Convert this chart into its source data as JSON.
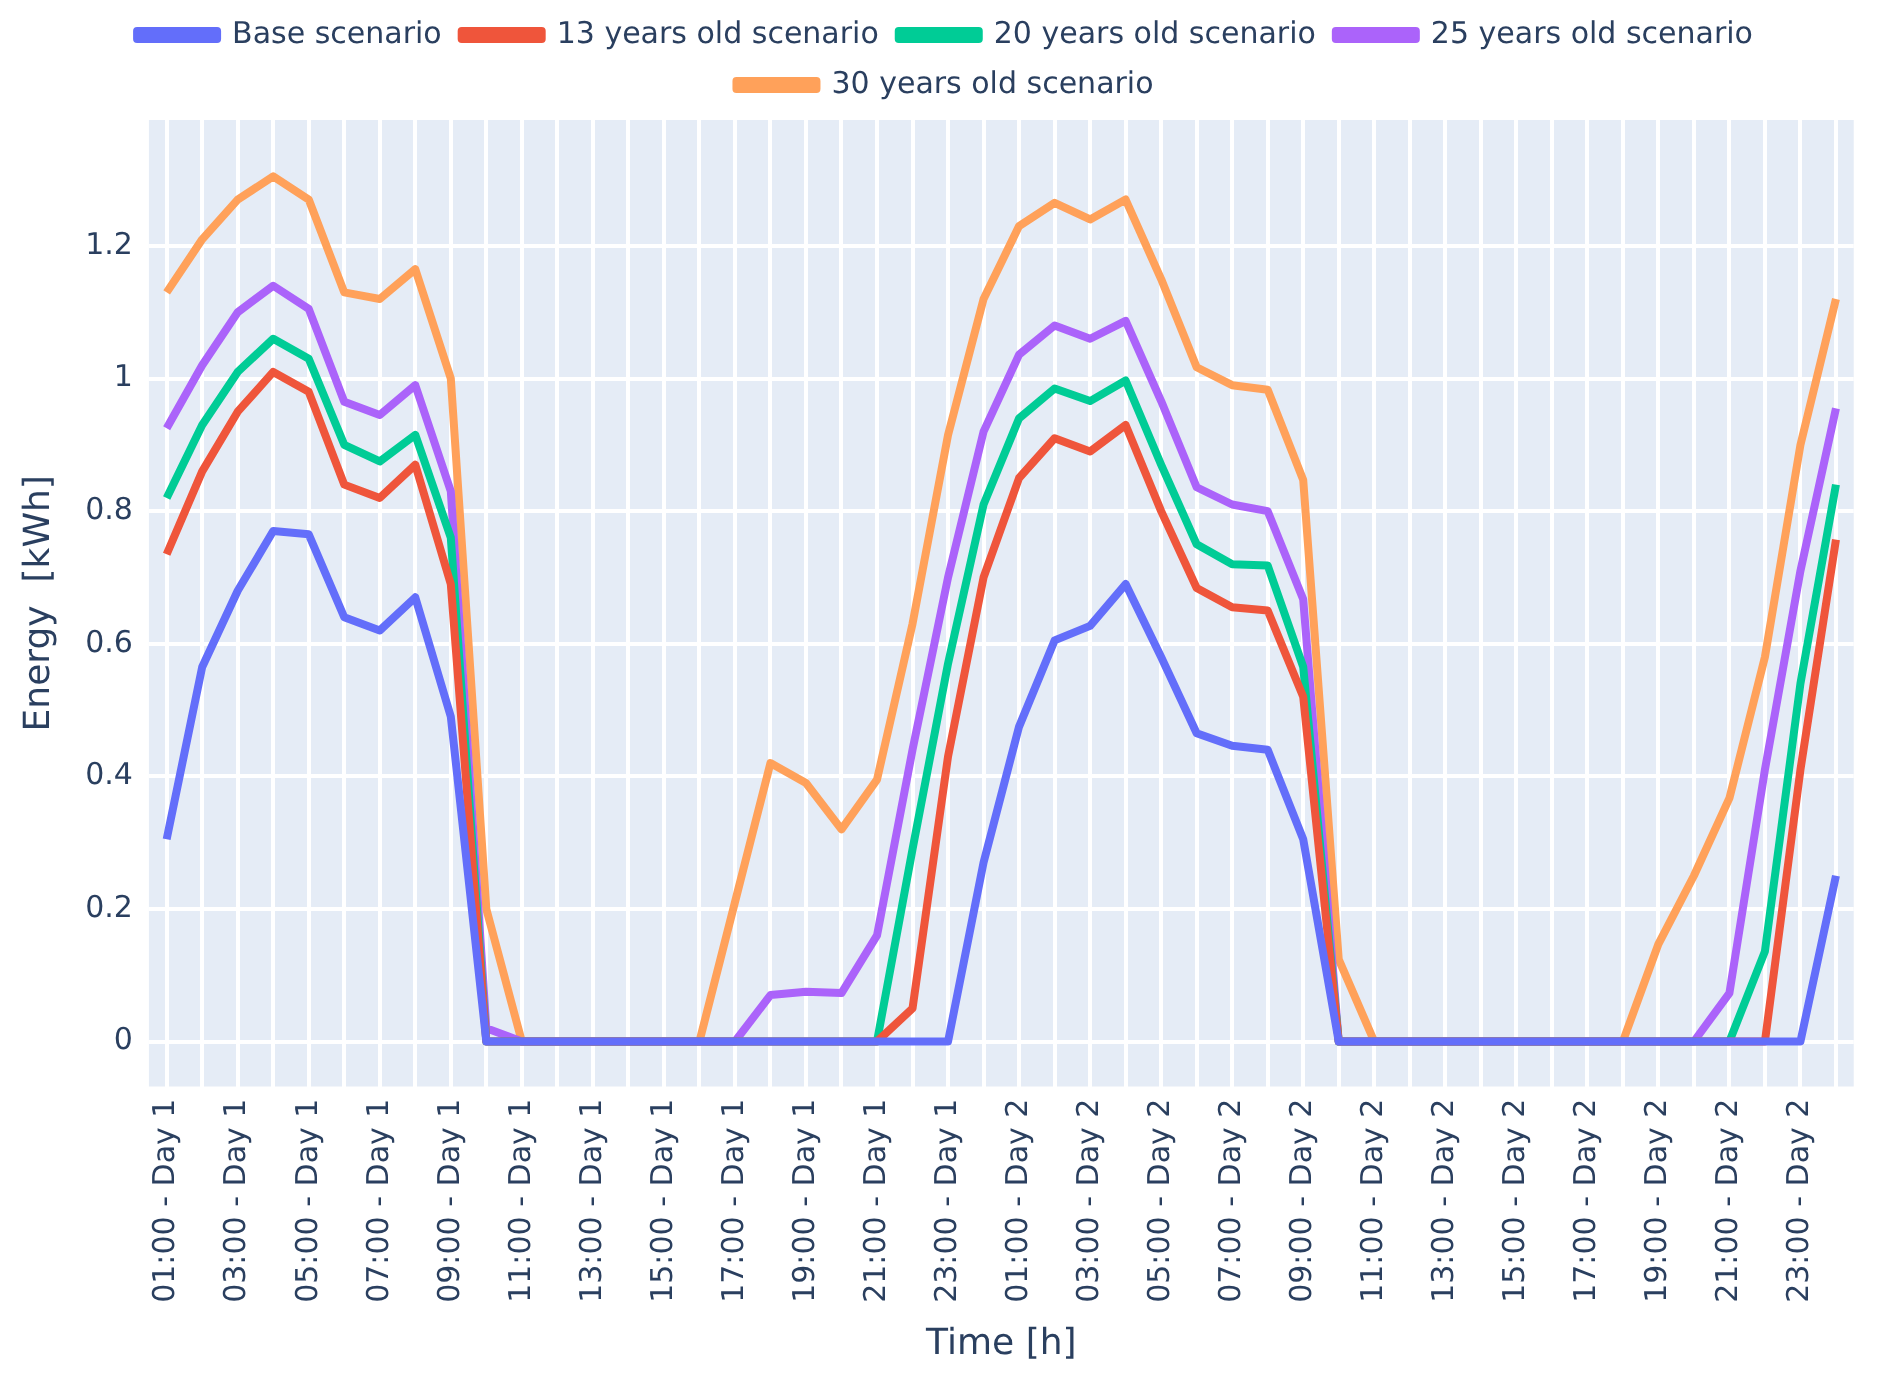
{
  "chart_data": {
    "type": "line",
    "xlabel": "Time [h]",
    "ylabel": "Energy  [kWh]",
    "categories": [
      "01:00 - Day 1",
      null,
      "03:00 - Day 1",
      null,
      "05:00 - Day 1",
      null,
      "07:00 - Day 1",
      null,
      "09:00 - Day 1",
      null,
      "11:00 - Day 1",
      null,
      "13:00 - Day 1",
      null,
      "15:00 - Day 1",
      null,
      "17:00 - Day 1",
      null,
      "19:00 - Day 1",
      null,
      "21:00 - Day 1",
      null,
      "23:00 - Day 1",
      null,
      "01:00 - Day 2",
      null,
      "03:00 - Day 2",
      null,
      "05:00 - Day 2",
      null,
      "07:00 - Day 2",
      null,
      "09:00 - Day 2",
      null,
      "11:00 - Day 2",
      null,
      "13:00 - Day 2",
      null,
      "15:00 - Day 2",
      null,
      "17:00 - Day 2",
      null,
      "19:00 - Day 2",
      null,
      "21:00 - Day 2",
      null,
      "23:00 - Day 2",
      null
    ],
    "series": [
      {
        "name": "Base scenario",
        "color": "#636efa",
        "values": [
          0.305,
          0.565,
          0.68,
          0.77,
          0.765,
          0.64,
          0.62,
          0.67,
          0.49,
          0,
          0,
          0,
          0,
          0,
          0,
          0,
          0,
          0,
          0,
          0,
          0,
          0,
          0,
          0.27,
          0.475,
          0.605,
          0.627,
          0.69,
          0.58,
          0.465,
          0.446,
          0.44,
          0.305,
          0,
          0,
          0,
          0,
          0,
          0,
          0,
          0,
          0,
          0,
          0,
          0,
          0,
          0,
          0.25
        ]
      },
      {
        "name": "13 years old scenario",
        "color": "#ef553b",
        "values": [
          0.735,
          0.86,
          0.95,
          1.01,
          0.98,
          0.84,
          0.82,
          0.87,
          0.69,
          0,
          0,
          0,
          0,
          0,
          0,
          0,
          0,
          0,
          0,
          0,
          0,
          0.05,
          0.43,
          0.7,
          0.85,
          0.91,
          0.89,
          0.93,
          0.8,
          0.684,
          0.655,
          0.65,
          0.52,
          0,
          0,
          0,
          0,
          0,
          0,
          0,
          0,
          0,
          0,
          0,
          0,
          0,
          0.41,
          0.757
        ]
      },
      {
        "name": "20 years old scenario",
        "color": "#00cc96",
        "values": [
          0.82,
          0.93,
          1.01,
          1.06,
          1.03,
          0.9,
          0.875,
          0.915,
          0.76,
          0,
          0,
          0,
          0,
          0,
          0,
          0,
          0,
          0,
          0,
          0,
          0,
          0.29,
          0.57,
          0.81,
          0.94,
          0.985,
          0.966,
          0.997,
          0.87,
          0.75,
          0.72,
          0.718,
          0.565,
          0,
          0,
          0,
          0,
          0,
          0,
          0,
          0,
          0,
          0,
          0,
          0,
          0.136,
          0.54,
          0.84
        ]
      },
      {
        "name": "25 years old scenario",
        "color": "#ab63fa",
        "values": [
          0.925,
          1.02,
          1.1,
          1.14,
          1.105,
          0.965,
          0.945,
          0.99,
          0.83,
          0.02,
          0,
          0,
          0,
          0,
          0,
          0,
          0,
          0.07,
          0.075,
          0.073,
          0.16,
          0.44,
          0.7,
          0.92,
          1.036,
          1.08,
          1.06,
          1.087,
          0.966,
          0.836,
          0.81,
          0.8,
          0.667,
          0,
          0,
          0,
          0,
          0,
          0,
          0,
          0,
          0,
          0,
          0,
          0.073,
          0.41,
          0.71,
          0.955
        ]
      },
      {
        "name": "30 years old scenario",
        "color": "#ffa15a",
        "values": [
          1.13,
          1.21,
          1.27,
          1.305,
          1.27,
          1.13,
          1.12,
          1.165,
          1.0,
          0.2,
          0,
          0,
          0,
          0,
          0,
          0,
          0.21,
          0.42,
          0.39,
          0.32,
          0.395,
          0.63,
          0.915,
          1.12,
          1.23,
          1.265,
          1.24,
          1.27,
          1.15,
          1.017,
          0.99,
          0.983,
          0.847,
          0.124,
          0,
          0,
          0,
          0,
          0,
          0,
          0,
          0,
          0.147,
          0.25,
          0.367,
          0.58,
          0.9,
          1.12
        ]
      }
    ],
    "ylim": [
      -0.068,
      1.39
    ],
    "yticks": [
      0,
      0.2,
      0.4,
      0.6,
      0.8,
      1,
      1.2
    ],
    "grid": true,
    "legend": "top",
    "line_style": "solid",
    "marker": "none"
  }
}
